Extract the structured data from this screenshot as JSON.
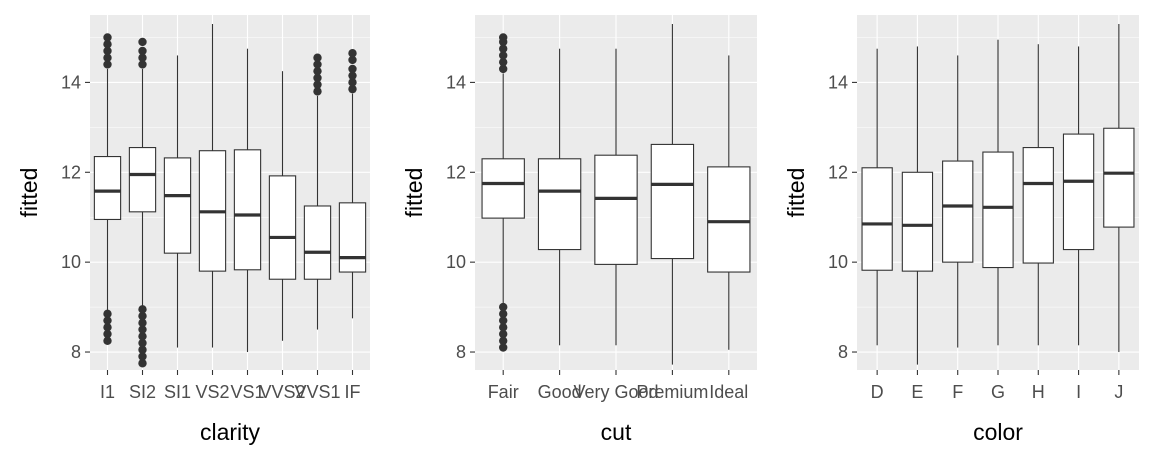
{
  "chart_data": [
    {
      "type": "boxplot",
      "xlabel": "clarity",
      "ylabel": "fitted",
      "ylim": [
        7.6,
        15.5
      ],
      "yticks": [
        8,
        10,
        12,
        14
      ],
      "grid": true,
      "categories": [
        "I1",
        "SI2",
        "SI1",
        "VS2",
        "VS1",
        "VVS2",
        "VVS1",
        "IF"
      ],
      "boxes": [
        {
          "category": "I1",
          "whisker_low": 8.9,
          "q1": 10.95,
          "median": 11.58,
          "q3": 12.35,
          "whisker_high": 14.3,
          "outliers_low": [
            8.25,
            8.4,
            8.55,
            8.7,
            8.85
          ],
          "outliers_high": [
            14.4,
            14.55,
            14.7,
            14.85,
            15.0
          ]
        },
        {
          "category": "SI2",
          "whisker_low": 9.0,
          "q1": 11.12,
          "median": 11.95,
          "q3": 12.55,
          "whisker_high": 14.3,
          "outliers_low": [
            7.75,
            7.9,
            8.05,
            8.2,
            8.35,
            8.5,
            8.65,
            8.8,
            8.95
          ],
          "outliers_high": [
            14.4,
            14.55,
            14.7,
            14.9
          ]
        },
        {
          "category": "SI1",
          "whisker_low": 8.1,
          "q1": 10.2,
          "median": 11.48,
          "q3": 12.32,
          "whisker_high": 14.6,
          "outliers_low": [],
          "outliers_high": []
        },
        {
          "category": "VS2",
          "whisker_low": 8.1,
          "q1": 9.8,
          "median": 11.12,
          "q3": 12.48,
          "whisker_high": 15.3,
          "outliers_low": [],
          "outliers_high": []
        },
        {
          "category": "VS1",
          "whisker_low": 8.0,
          "q1": 9.83,
          "median": 11.05,
          "q3": 12.5,
          "whisker_high": 14.75,
          "outliers_low": [],
          "outliers_high": []
        },
        {
          "category": "VVS2",
          "whisker_low": 8.25,
          "q1": 9.62,
          "median": 10.55,
          "q3": 11.92,
          "whisker_high": 14.25,
          "outliers_low": [],
          "outliers_high": []
        },
        {
          "category": "VVS1",
          "whisker_low": 8.5,
          "q1": 9.62,
          "median": 10.22,
          "q3": 11.25,
          "whisker_high": 13.7,
          "outliers_low": [],
          "outliers_high": [
            13.8,
            13.95,
            14.1,
            14.25,
            14.4,
            14.55
          ]
        },
        {
          "category": "IF",
          "whisker_low": 8.75,
          "q1": 9.78,
          "median": 10.1,
          "q3": 11.32,
          "whisker_high": 13.75,
          "outliers_low": [],
          "outliers_high": [
            13.85,
            14.0,
            14.15,
            14.3,
            14.5,
            14.65
          ]
        }
      ]
    },
    {
      "type": "boxplot",
      "xlabel": "cut",
      "ylabel": "fitted",
      "ylim": [
        7.6,
        15.5
      ],
      "yticks": [
        8,
        10,
        12,
        14
      ],
      "grid": true,
      "categories": [
        "Fair",
        "Good",
        "Very Good",
        "Premium",
        "Ideal"
      ],
      "boxes": [
        {
          "category": "Fair",
          "whisker_low": 9.0,
          "q1": 10.98,
          "median": 11.75,
          "q3": 12.3,
          "whisker_high": 14.2,
          "outliers_low": [
            8.1,
            8.25,
            8.4,
            8.55,
            8.7,
            8.85,
            9.0
          ],
          "outliers_high": [
            14.3,
            14.45,
            14.6,
            14.75,
            14.9,
            15.0
          ]
        },
        {
          "category": "Good",
          "whisker_low": 8.15,
          "q1": 10.28,
          "median": 11.58,
          "q3": 12.3,
          "whisker_high": 14.75,
          "outliers_low": [],
          "outliers_high": []
        },
        {
          "category": "Very Good",
          "whisker_low": 8.15,
          "q1": 9.95,
          "median": 11.42,
          "q3": 12.38,
          "whisker_high": 14.75,
          "outliers_low": [],
          "outliers_high": []
        },
        {
          "category": "Premium",
          "whisker_low": 7.72,
          "q1": 10.08,
          "median": 11.73,
          "q3": 12.62,
          "whisker_high": 15.3,
          "outliers_low": [],
          "outliers_high": []
        },
        {
          "category": "Ideal",
          "whisker_low": 8.05,
          "q1": 9.78,
          "median": 10.9,
          "q3": 12.12,
          "whisker_high": 14.6,
          "outliers_low": [],
          "outliers_high": []
        }
      ]
    },
    {
      "type": "boxplot",
      "xlabel": "color",
      "ylabel": "fitted",
      "ylim": [
        7.6,
        15.5
      ],
      "yticks": [
        8,
        10,
        12,
        14
      ],
      "grid": true,
      "categories": [
        "D",
        "E",
        "F",
        "G",
        "H",
        "I",
        "J"
      ],
      "boxes": [
        {
          "category": "D",
          "whisker_low": 8.15,
          "q1": 9.82,
          "median": 10.85,
          "q3": 12.1,
          "whisker_high": 14.75,
          "outliers_low": [],
          "outliers_high": []
        },
        {
          "category": "E",
          "whisker_low": 7.72,
          "q1": 9.8,
          "median": 10.82,
          "q3": 12.0,
          "whisker_high": 14.8,
          "outliers_low": [],
          "outliers_high": []
        },
        {
          "category": "F",
          "whisker_low": 8.1,
          "q1": 10.0,
          "median": 11.25,
          "q3": 12.25,
          "whisker_high": 14.6,
          "outliers_low": [],
          "outliers_high": []
        },
        {
          "category": "G",
          "whisker_low": 8.15,
          "q1": 9.88,
          "median": 11.22,
          "q3": 12.45,
          "whisker_high": 14.95,
          "outliers_low": [],
          "outliers_high": []
        },
        {
          "category": "H",
          "whisker_low": 8.15,
          "q1": 9.98,
          "median": 11.75,
          "q3": 12.55,
          "whisker_high": 14.85,
          "outliers_low": [],
          "outliers_high": []
        },
        {
          "category": "I",
          "whisker_low": 8.15,
          "q1": 10.28,
          "median": 11.8,
          "q3": 12.85,
          "whisker_high": 14.8,
          "outliers_low": [],
          "outliers_high": []
        },
        {
          "category": "J",
          "whisker_low": 8.0,
          "q1": 10.78,
          "median": 11.98,
          "q3": 12.98,
          "whisker_high": 15.3,
          "outliers_low": [],
          "outliers_high": []
        }
      ]
    }
  ]
}
